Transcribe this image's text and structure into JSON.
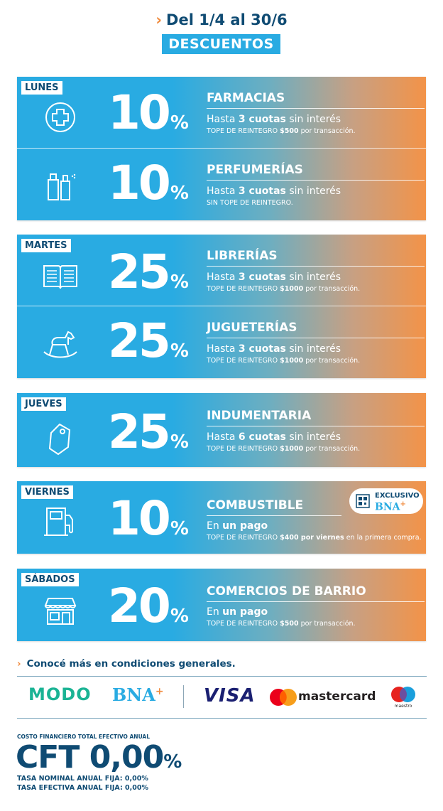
{
  "header": {
    "date_range": "Del 1/4 al 30/6",
    "title": "DESCUENTOS"
  },
  "colors": {
    "navy": "#0f4b73",
    "cyan": "#29abe2",
    "orange": "#f39348",
    "green": "#1ab394"
  },
  "days": [
    {
      "day": "LUNES",
      "items": [
        {
          "percent": "10",
          "symbol": "%",
          "category": "FARMACIAS",
          "icon": "pharmacy-cross-icon",
          "line1_pre": "Hasta ",
          "line1_bold": "3 cuotas",
          "line1_post": " sin interés",
          "line2_pre": "TOPE DE REINTEGRO ",
          "line2_bold": "$500",
          "line2_post": " por transacción."
        },
        {
          "percent": "10",
          "symbol": "%",
          "category": "PERFUMERÍAS",
          "icon": "perfume-bottles-icon",
          "line1_pre": "Hasta ",
          "line1_bold": "3 cuotas",
          "line1_post": " sin interés",
          "line2_pre": "SIN TOPE DE REINTEGRO.",
          "line2_bold": "",
          "line2_post": ""
        }
      ]
    },
    {
      "day": "MARTES",
      "items": [
        {
          "percent": "25",
          "symbol": "%",
          "category": "LIBRERÍAS",
          "icon": "open-book-icon",
          "line1_pre": "Hasta ",
          "line1_bold": "3 cuotas",
          "line1_post": " sin interés",
          "line2_pre": "TOPE DE REINTEGRO ",
          "line2_bold": "$1000",
          "line2_post": " por transacción."
        },
        {
          "percent": "25",
          "symbol": "%",
          "category": "JUGUETERÍAS",
          "icon": "rocking-horse-icon",
          "line1_pre": "Hasta ",
          "line1_bold": "3 cuotas",
          "line1_post": " sin interés",
          "line2_pre": "TOPE DE REINTEGRO ",
          "line2_bold": "$1000",
          "line2_post": " por transacción."
        }
      ]
    },
    {
      "day": "JUEVES",
      "items": [
        {
          "percent": "25",
          "symbol": "%",
          "category": "INDUMENTARIA",
          "icon": "clothing-tag-icon",
          "line1_pre": "Hasta ",
          "line1_bold": "6 cuotas",
          "line1_post": " sin interés",
          "line2_pre": "TOPE DE REINTEGRO ",
          "line2_bold": "$1000",
          "line2_post": " por transacción."
        }
      ]
    },
    {
      "day": "VIERNES",
      "exclusive": {
        "label": "EXCLUSIVO",
        "brand": "BNA",
        "plus": "+",
        "icon": "qr-code-icon"
      },
      "items": [
        {
          "percent": "10",
          "symbol": "%",
          "category": "COMBUSTIBLE",
          "icon": "fuel-pump-icon",
          "line1_pre": "En ",
          "line1_bold": "un pago",
          "line1_post": "",
          "line2_pre": "TOPE DE REINTEGRO ",
          "line2_bold": "$400 por viernes",
          "line2_post": " en la primera compra."
        }
      ]
    },
    {
      "day": "SÁBADOS",
      "items": [
        {
          "percent": "20",
          "symbol": "%",
          "category": "COMERCIOS DE BARRIO",
          "icon": "storefront-icon",
          "line1_pre": "En ",
          "line1_bold": "un pago",
          "line1_post": "",
          "line2_pre": "TOPE DE REINTEGRO ",
          "line2_bold": "$500",
          "line2_post": " por transacción."
        }
      ]
    }
  ],
  "footer": {
    "more_link": "Conocé más en condiciones generales.",
    "logos": {
      "modo": "MODO",
      "bna": "BNA",
      "bna_plus": "+",
      "visa": "VISA",
      "mastercard": "mastercard",
      "maestro": "maestro"
    },
    "cft_label": "COSTO FINANCIERO TOTAL EFECTIVO ANUAL",
    "cft_prefix": "CFT ",
    "cft_value": "0,00",
    "cft_percent": "%",
    "tna": "TASA NOMINAL ANUAL FIJA: 0,00%",
    "tea": "TASA EFECTIVA ANUAL FIJA: 0,00%"
  }
}
